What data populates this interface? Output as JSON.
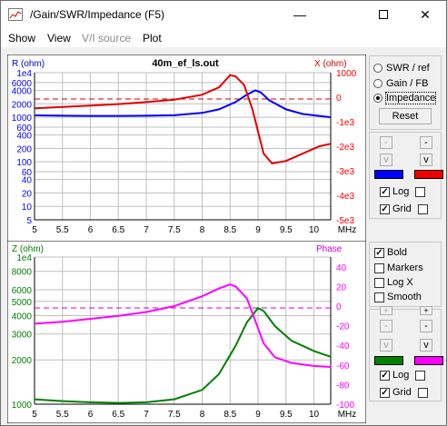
{
  "window": {
    "title": "/Gain/SWR/Impedance (F5)"
  },
  "menu": [
    "Show",
    "View",
    "V/I source",
    "Plot"
  ],
  "top_plot": {
    "title": "40m_ef_ls.out",
    "left_label": "R (ohm)",
    "right_label": "X (ohm)",
    "left_ticks": [
      "1e4",
      "6000",
      "4000",
      "2000",
      "1000",
      "600",
      "400",
      "200",
      "100",
      "60",
      "40",
      "20",
      "10",
      "5"
    ],
    "right_ticks": [
      "1000",
      "0",
      "-1e3",
      "-2e3",
      "-3e3",
      "-4e3",
      "-5e3"
    ],
    "x_ticks": [
      "5",
      "5.5",
      "6",
      "6.5",
      "7",
      "7.5",
      "8",
      "8.5",
      "9",
      "9.5",
      "10"
    ],
    "x_unit": "MHz"
  },
  "bottom_plot": {
    "left_label": "Z (ohm)",
    "right_label": "Phase",
    "left_ticks": [
      "1e4",
      "8000",
      "6000",
      "5000",
      "4000",
      "3000",
      "2000",
      "1000"
    ],
    "right_ticks": [
      "40",
      "20",
      "0",
      "-20",
      "-40",
      "-60",
      "-80",
      "-100"
    ],
    "x_ticks": [
      "5",
      "5.5",
      "6",
      "6.5",
      "7",
      "7.5",
      "8",
      "8.5",
      "9",
      "9.5",
      "10"
    ],
    "x_unit": "MHz"
  },
  "panel": {
    "radios": [
      "SWR / ref",
      "Gain / FB",
      "Impedance"
    ],
    "selected_radio": "Impedance",
    "reset": "Reset",
    "top_checks": {
      "log": "Log",
      "grid": "Grid"
    },
    "options": [
      "Bold",
      "Markers",
      "Log X",
      "Smooth"
    ],
    "bottom_checks": {
      "log": "Log",
      "grid": "Grid"
    },
    "btn_minus": "-",
    "btn_plus": "+",
    "btn_down": "v"
  },
  "chart_data": [
    {
      "type": "line",
      "title": "40m_ef_ls.out",
      "xlabel": "MHz",
      "xlim": [
        5,
        10.3
      ],
      "series": [
        {
          "name": "R (ohm)",
          "axis": "left",
          "color": "#0000ff",
          "x": [
            5,
            5.5,
            6,
            6.5,
            7,
            7.5,
            8,
            8.3,
            8.6,
            8.8,
            8.95,
            9.05,
            9.2,
            9.5,
            9.8,
            10.3
          ],
          "y": [
            1100,
            1080,
            1070,
            1070,
            1080,
            1110,
            1250,
            1500,
            2200,
            3200,
            4000,
            3600,
            2400,
            1500,
            1180,
            1000
          ]
        },
        {
          "name": "X (ohm)",
          "axis": "right",
          "color": "#ff0000",
          "x": [
            5,
            5.5,
            6,
            6.5,
            7,
            7.5,
            8,
            8.3,
            8.5,
            8.6,
            8.75,
            8.9,
            9.0,
            9.1,
            9.25,
            9.5,
            9.8,
            10.1,
            10.3
          ],
          "y": [
            -450,
            -400,
            -340,
            -280,
            -200,
            -100,
            100,
            400,
            900,
            850,
            500,
            -500,
            -1400,
            -2300,
            -2700,
            -2600,
            -2300,
            -2000,
            -1900
          ]
        }
      ],
      "left_scale": "log",
      "ylim_left": [
        5,
        10000
      ],
      "ylim_right": [
        -5000,
        1000
      ]
    },
    {
      "type": "line",
      "xlabel": "MHz",
      "xlim": [
        5,
        10.3
      ],
      "series": [
        {
          "name": "Z (ohm)",
          "axis": "left",
          "color": "#008000",
          "x": [
            5,
            5.5,
            6,
            6.5,
            7,
            7.5,
            8,
            8.3,
            8.6,
            8.8,
            9.0,
            9.1,
            9.3,
            9.6,
            10,
            10.3
          ],
          "y": [
            1080,
            1050,
            1030,
            1020,
            1030,
            1080,
            1250,
            1600,
            2500,
            3600,
            4500,
            4300,
            3400,
            2700,
            2300,
            2100
          ]
        },
        {
          "name": "Phase",
          "axis": "right",
          "color": "#ff00ff",
          "x": [
            5,
            5.5,
            6,
            6.5,
            7,
            7.5,
            8,
            8.3,
            8.5,
            8.6,
            8.8,
            8.95,
            9.1,
            9.3,
            9.6,
            10,
            10.3
          ],
          "y": [
            -18,
            -16,
            -13,
            -10,
            -6,
            0,
            10,
            18,
            22,
            20,
            8,
            -15,
            -38,
            -52,
            -58,
            -61,
            -62
          ]
        }
      ],
      "left_scale": "log",
      "ylim_left": [
        1000,
        10000
      ],
      "ylim_right": [
        -100,
        50
      ]
    }
  ]
}
